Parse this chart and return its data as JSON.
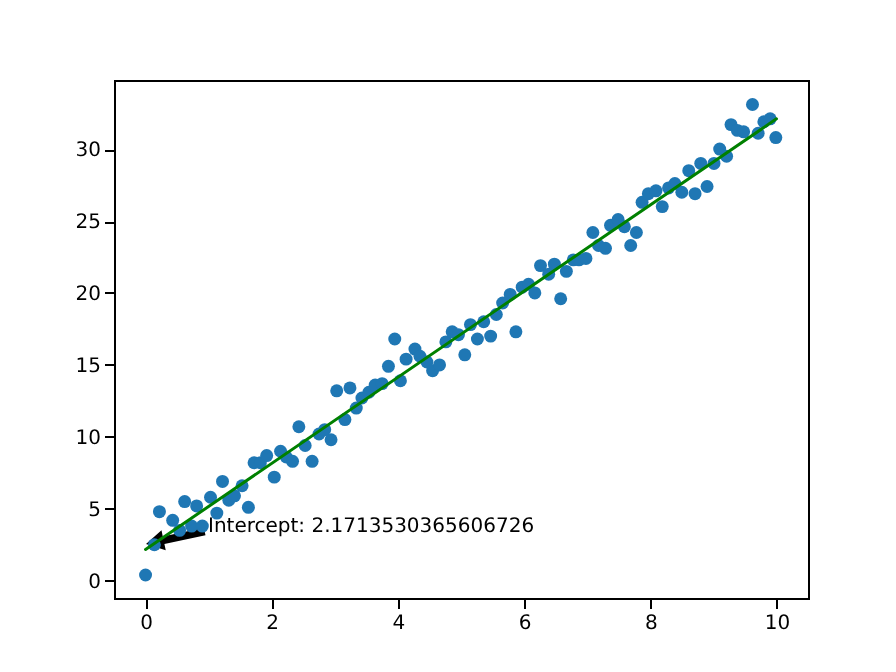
{
  "chart_data": {
    "type": "scatter",
    "xlim": [
      -0.5,
      10.5
    ],
    "ylim": [
      -1.2,
      34.8
    ],
    "xticks": [
      0,
      2,
      4,
      6,
      8,
      10
    ],
    "yticks": [
      0,
      5,
      10,
      15,
      20,
      25,
      30
    ],
    "annotations": [
      "Intercept: 2.1713530365606726"
    ],
    "series": [
      {
        "marker": "circle",
        "color": "#1f77b4",
        "x": [
          0,
          0.14,
          0.22,
          0.43,
          0.54,
          0.62,
          0.73,
          0.81,
          0.9,
          1.03,
          1.13,
          1.22,
          1.32,
          1.41,
          1.53,
          1.63,
          1.72,
          1.82,
          1.92,
          2.04,
          2.14,
          2.23,
          2.33,
          2.43,
          2.53,
          2.64,
          2.75,
          2.84,
          2.94,
          3.03,
          3.16,
          3.24,
          3.34,
          3.43,
          3.54,
          3.64,
          3.75,
          3.85,
          3.95,
          4.04,
          4.13,
          4.27,
          4.35,
          4.46,
          4.55,
          4.66,
          4.76,
          4.86,
          4.96,
          5.06,
          5.15,
          5.26,
          5.36,
          5.47,
          5.56,
          5.66,
          5.78,
          5.87,
          5.97,
          6.07,
          6.17,
          6.26,
          6.39,
          6.48,
          6.58,
          6.67,
          6.78,
          6.87,
          6.98,
          7.09,
          7.18,
          7.29,
          7.37,
          7.49,
          7.59,
          7.69,
          7.78,
          7.87,
          7.97,
          8.09,
          8.19,
          8.29,
          8.39,
          8.5,
          8.61,
          8.71,
          8.8,
          8.9,
          9.01,
          9.1,
          9.21,
          9.28,
          9.38,
          9.48,
          9.62,
          9.71,
          9.8,
          9.9,
          9.99
        ],
        "values": [
          0.4,
          2.5,
          4.8,
          4.2,
          3.5,
          5.5,
          3.8,
          5.2,
          3.8,
          5.8,
          4.7,
          6.9,
          5.6,
          5.9,
          6.6,
          5.1,
          8.2,
          8.2,
          8.7,
          7.2,
          9.0,
          8.6,
          8.3,
          10.7,
          9.4,
          8.3,
          10.2,
          10.5,
          9.8,
          13.2,
          11.2,
          13.4,
          12.0,
          12.7,
          13.1,
          13.6,
          13.7,
          14.9,
          16.8,
          13.9,
          15.4,
          16.1,
          15.6,
          15.2,
          14.6,
          15.0,
          16.6,
          17.3,
          17.1,
          15.7,
          17.8,
          16.8,
          18.0,
          17.0,
          18.5,
          19.3,
          19.9,
          17.3,
          20.4,
          20.6,
          20.0,
          21.9,
          21.3,
          22.0,
          19.6,
          21.5,
          22.3,
          22.3,
          22.4,
          24.2,
          23.3,
          23.1,
          24.7,
          25.1,
          24.6,
          23.3,
          24.2,
          26.3,
          26.9,
          27.1,
          26.0,
          27.3,
          27.6,
          27.0,
          28.5,
          26.9,
          29.0,
          27.4,
          29.0,
          30.0,
          29.5,
          31.7,
          31.3,
          31.2,
          33.1,
          31.1,
          31.9,
          32.1,
          30.8
        ]
      },
      {
        "type": "line",
        "color": "#008000",
        "x": [
          0,
          10
        ],
        "values": [
          2.17,
          32.1
        ]
      }
    ]
  }
}
